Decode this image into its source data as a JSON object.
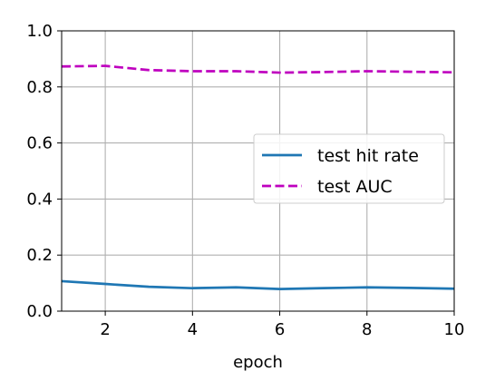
{
  "chart_data": {
    "type": "line",
    "xlabel": "epoch",
    "ylabel": "",
    "xlim": [
      1,
      10
    ],
    "ylim": [
      0,
      1.0
    ],
    "x_ticks": [
      "2",
      "4",
      "6",
      "8",
      "10"
    ],
    "y_ticks": [
      "0.0",
      "0.2",
      "0.4",
      "0.6",
      "0.8",
      "1.0"
    ],
    "grid": true,
    "legend_position": "center-right",
    "x": [
      1,
      2,
      3,
      4,
      5,
      6,
      7,
      8,
      9,
      10
    ],
    "series": [
      {
        "name": "test hit rate",
        "color": "#1f77b4",
        "style": "solid",
        "values": [
          0.107,
          0.097,
          0.087,
          0.082,
          0.085,
          0.079,
          0.082,
          0.085,
          0.083,
          0.08
        ]
      },
      {
        "name": "test AUC",
        "color": "#bf00bf",
        "style": "dashed",
        "values": [
          0.873,
          0.875,
          0.86,
          0.856,
          0.856,
          0.851,
          0.853,
          0.856,
          0.854,
          0.852
        ]
      }
    ]
  }
}
